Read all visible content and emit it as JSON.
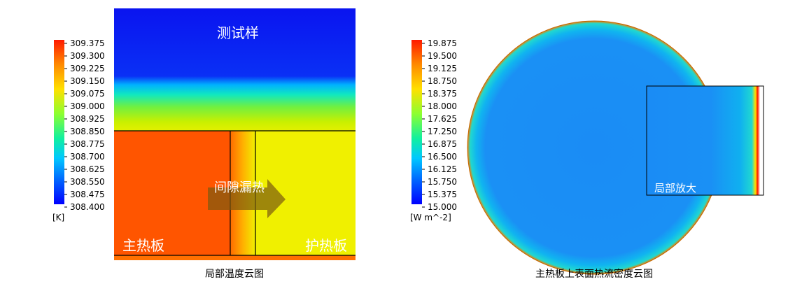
{
  "left_panel": {
    "colorbar": {
      "labels": [
        "309.375",
        "309.300",
        "309.225",
        "309.150",
        "309.075",
        "309.000",
        "308.925",
        "308.850",
        "308.775",
        "308.700",
        "308.625",
        "308.550",
        "308.475",
        "308.400"
      ],
      "unit": "[K]"
    },
    "regions": {
      "sample": "测试样",
      "main_plate": "主热板",
      "guard_plate": "护热板",
      "gap_leak": "间隙漏热"
    },
    "caption": "局部温度云图"
  },
  "right_panel": {
    "colorbar": {
      "labels": [
        "19.875",
        "19.500",
        "19.125",
        "18.750",
        "18.375",
        "18.000",
        "17.625",
        "17.250",
        "16.875",
        "16.500",
        "16.125",
        "15.750",
        "15.375",
        "15.000"
      ],
      "unit": "[W m^-2]"
    },
    "inset_label": "局部放大",
    "caption": "主热板上表面热流密度云图"
  }
}
